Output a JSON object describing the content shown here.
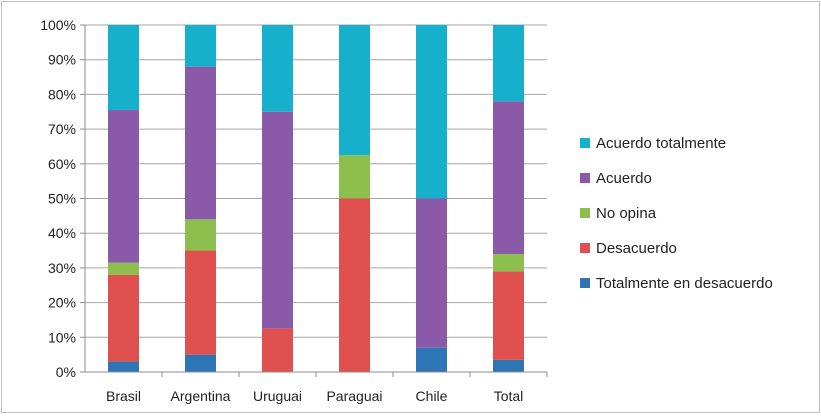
{
  "chart_data": {
    "type": "bar",
    "stacked": true,
    "normalized": true,
    "categories": [
      "Brasil",
      "Argentina",
      "Uruguai",
      "Paraguai",
      "Chile",
      "Total"
    ],
    "yticks": [
      "0%",
      "10%",
      "20%",
      "30%",
      "40%",
      "50%",
      "60%",
      "70%",
      "80%",
      "90%",
      "100%"
    ],
    "ylim": [
      0,
      100
    ],
    "grid": true,
    "legend_position": "right",
    "series": [
      {
        "name": "Totalmente en desacuerdo",
        "color": "#2e75b6",
        "values": [
          3,
          5,
          0,
          0,
          7,
          3.5
        ]
      },
      {
        "name": "Desacuerdo",
        "color": "#e0504e",
        "values": [
          25,
          30,
          12.5,
          50,
          0,
          25.5
        ]
      },
      {
        "name": "No opina",
        "color": "#8cbf4e",
        "values": [
          3.5,
          9,
          0,
          12.5,
          0,
          5
        ]
      },
      {
        "name": "Acuerdo",
        "color": "#8a5aa8",
        "values": [
          44,
          44,
          62.5,
          0,
          43,
          44
        ]
      },
      {
        "name": "Acuerdo totalmente",
        "color": "#17b0cc",
        "values": [
          24.5,
          12,
          25,
          37.5,
          50,
          22
        ]
      }
    ]
  }
}
